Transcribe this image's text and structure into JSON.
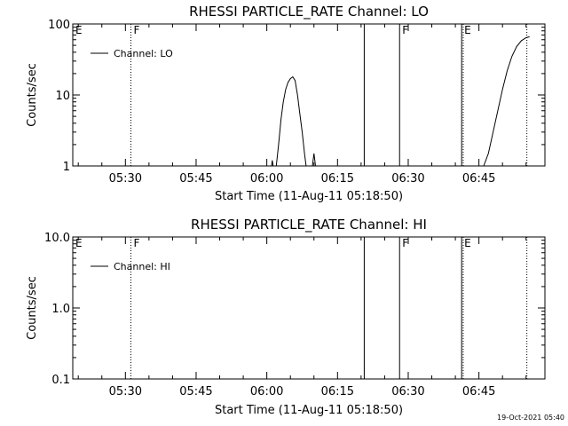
{
  "stamp": "19-Oct-2021 05:40",
  "chart_data": [
    {
      "type": "line",
      "title": "RHESSI PARTICLE_RATE Channel: LO",
      "xlabel": "Start Time (11-Aug-11 05:18:50)",
      "ylabel": "Counts/sec",
      "yscale": "log",
      "ylim": [
        1,
        100
      ],
      "ytick_values": [
        1,
        10,
        100
      ],
      "ytick_labels": [
        "1",
        "10",
        "100"
      ],
      "xlim": [
        "05:18:50",
        "06:59:00"
      ],
      "xtick_values": [
        "05:30",
        "05:45",
        "06:00",
        "06:15",
        "06:30",
        "06:45"
      ],
      "xtick_labels": [
        "05:30",
        "05:45",
        "06:00",
        "06:15",
        "06:30",
        "06:45"
      ],
      "grid": false,
      "legend": {
        "position": "top-left",
        "entries": [
          "Channel: LO"
        ]
      },
      "series": [
        {
          "name": "Channel: LO",
          "segments": [
            [
              [
                "06:01:00",
                1.0
              ],
              [
                "06:01:10",
                1.2
              ],
              [
                "06:01:20",
                1.0
              ]
            ],
            [
              [
                "06:02:00",
                1.0
              ],
              [
                "06:02:30",
                2.0
              ],
              [
                "06:03:00",
                4.5
              ],
              [
                "06:03:30",
                8.0
              ],
              [
                "06:04:00",
                12.0
              ],
              [
                "06:04:30",
                15.0
              ],
              [
                "06:05:00",
                17.0
              ],
              [
                "06:05:30",
                18.0
              ],
              [
                "06:06:00",
                16.0
              ],
              [
                "06:06:30",
                10.0
              ],
              [
                "06:07:00",
                5.5
              ],
              [
                "06:07:30",
                3.0
              ],
              [
                "06:08:00",
                1.5
              ],
              [
                "06:08:20",
                1.0
              ]
            ],
            [
              [
                "06:09:40",
                1.0
              ],
              [
                "06:10:00",
                1.5
              ],
              [
                "06:10:20",
                1.0
              ]
            ],
            [
              [
                "06:46:00",
                1.0
              ],
              [
                "06:47:00",
                1.5
              ],
              [
                "06:48:00",
                3.0
              ],
              [
                "06:49:00",
                6.0
              ],
              [
                "06:50:00",
                12.0
              ],
              [
                "06:51:00",
                22.0
              ],
              [
                "06:52:00",
                35.0
              ],
              [
                "06:53:00",
                48.0
              ],
              [
                "06:54:00",
                58.0
              ],
              [
                "06:55:00",
                64.0
              ],
              [
                "06:55:45",
                66.0
              ]
            ]
          ]
        }
      ],
      "markers": [
        {
          "time": "05:18:50",
          "style": "dotted",
          "label": "E"
        },
        {
          "time": "05:31:10",
          "style": "dotted",
          "label": "F"
        },
        {
          "time": "06:20:40",
          "style": "solid",
          "label": ""
        },
        {
          "time": "06:28:10",
          "style": "solid",
          "label": "F"
        },
        {
          "time": "06:41:20",
          "style": "solid",
          "label": "E"
        },
        {
          "time": "06:41:40",
          "style": "dotted",
          "label": ""
        },
        {
          "time": "06:55:10",
          "style": "dotted",
          "label": ""
        }
      ]
    },
    {
      "type": "line",
      "title": "RHESSI PARTICLE_RATE Channel: HI",
      "xlabel": "Start Time (11-Aug-11 05:18:50)",
      "ylabel": "Counts/sec",
      "yscale": "log",
      "ylim": [
        0.1,
        10
      ],
      "ytick_values": [
        0.1,
        1,
        10
      ],
      "ytick_labels": [
        "0.1",
        "1.0",
        "10.0"
      ],
      "xlim": [
        "05:18:50",
        "06:59:00"
      ],
      "xtick_values": [
        "05:30",
        "05:45",
        "06:00",
        "06:15",
        "06:30",
        "06:45"
      ],
      "xtick_labels": [
        "05:30",
        "05:45",
        "06:00",
        "06:15",
        "06:30",
        "06:45"
      ],
      "grid": false,
      "legend": {
        "position": "top-left",
        "entries": [
          "Channel: HI"
        ]
      },
      "series": [
        {
          "name": "Channel: HI",
          "segments": []
        }
      ],
      "markers": [
        {
          "time": "05:18:50",
          "style": "dotted",
          "label": "E"
        },
        {
          "time": "05:31:10",
          "style": "dotted",
          "label": "F"
        },
        {
          "time": "06:20:40",
          "style": "solid",
          "label": ""
        },
        {
          "time": "06:28:10",
          "style": "solid",
          "label": "F"
        },
        {
          "time": "06:41:20",
          "style": "solid",
          "label": "E"
        },
        {
          "time": "06:41:40",
          "style": "dotted",
          "label": ""
        },
        {
          "time": "06:55:10",
          "style": "dotted",
          "label": ""
        }
      ]
    }
  ]
}
